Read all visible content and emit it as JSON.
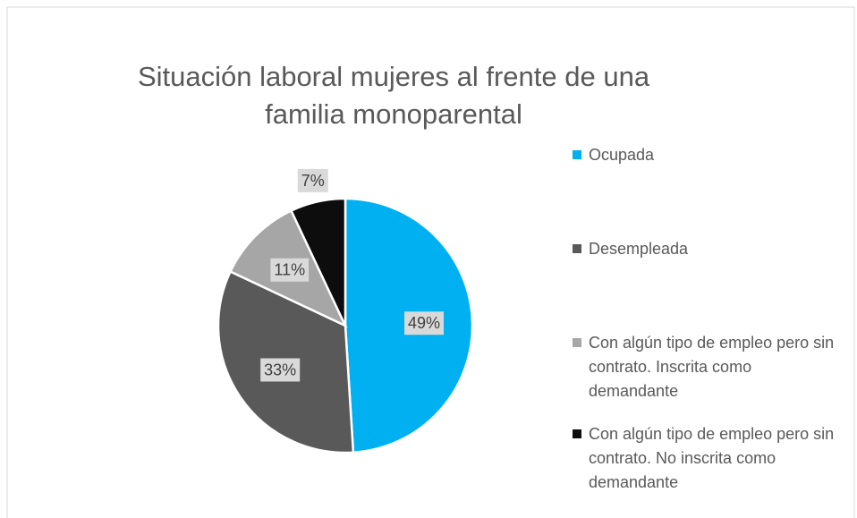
{
  "chart_data": {
    "type": "pie",
    "title": [
      "Situación laboral mujeres al frente de una",
      "familia monoparental"
    ],
    "categories": [
      "Ocupada",
      "Desempleada",
      "Con algún tipo de empleo pero sin contrato. Inscrita como demandante",
      "Con algún tipo de empleo pero sin contrato.  No inscrita como demandante"
    ],
    "values": [
      49,
      33,
      11,
      7
    ],
    "value_labels": [
      "49%",
      "33%",
      "11%",
      "7%"
    ],
    "colors": [
      "#00b0f0",
      "#595959",
      "#a6a6a6",
      "#0d0d0d"
    ],
    "legend": "right"
  }
}
